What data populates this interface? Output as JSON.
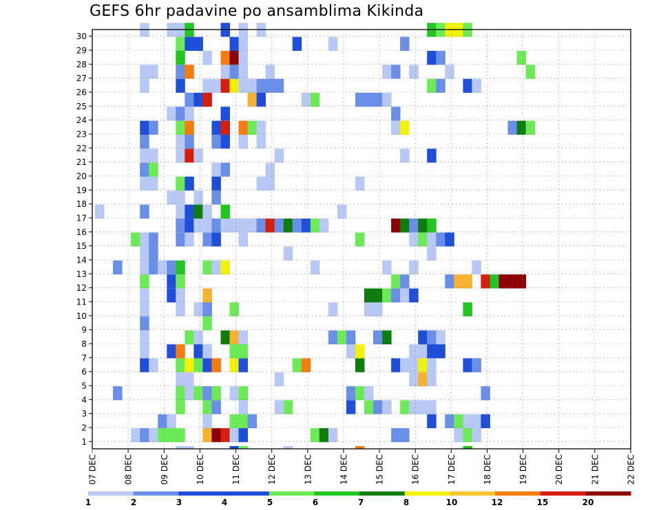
{
  "chart_data": {
    "type": "heatmap",
    "title": "GEFS 6hr padavine po ansamblima Kikinda",
    "xlabel": "",
    "ylabel": "",
    "y_tick_labels": [
      "1",
      "2",
      "3",
      "4",
      "5",
      "6",
      "7",
      "8",
      "9",
      "10",
      "11",
      "12",
      "13",
      "14",
      "15",
      "16",
      "17",
      "18",
      "19",
      "20",
      "21",
      "22",
      "23",
      "24",
      "25",
      "26",
      "27",
      "28",
      "29",
      "30"
    ],
    "x_tick_labels": [
      "07 DEC",
      "08 DEC",
      "09 DEC",
      "10 DEC",
      "11 DEC",
      "12 DEC",
      "13 DEC",
      "14 DEC",
      "15 DEC",
      "16 DEC",
      "17 DEC",
      "18 DEC",
      "19 DEC",
      "20 DEC",
      "21 DEC",
      "22 DEC"
    ],
    "color_levels": [
      "1",
      "2",
      "3",
      "4",
      "5",
      "6",
      "7",
      "8",
      "10",
      "12",
      "15",
      "20"
    ],
    "colorbar_colors": [
      "#b7c9f4",
      "#6a8fe8",
      "#1f4fd9",
      "#1f4fd9",
      "#6cea58",
      "#23c521",
      "#0e7d0e",
      "#f2f209",
      "#f8c533",
      "#f57d10",
      "#d61e0c",
      "#8b0000"
    ],
    "cells": [
      [
        "1",
        4,
        1
      ],
      [
        "1",
        5,
        2
      ],
      [
        "1",
        6,
        1
      ],
      [
        "1",
        7,
        5
      ],
      [
        "1",
        8,
        5
      ],
      [
        "1",
        9,
        5
      ],
      [
        "1",
        12,
        9
      ],
      [
        "1",
        13,
        12
      ],
      [
        "1",
        14,
        11
      ],
      [
        "1",
        15,
        1
      ],
      [
        "1",
        16,
        3
      ],
      [
        "1",
        24,
        5
      ],
      [
        "1",
        25,
        7
      ],
      [
        "1",
        26,
        1
      ],
      [
        "1",
        33,
        2
      ],
      [
        "1",
        34,
        2
      ],
      [
        "1",
        40,
        1
      ],
      [
        "1",
        41,
        5
      ],
      [
        "1",
        42,
        1
      ],
      [
        "2",
        7,
        2
      ],
      [
        "2",
        8,
        1
      ],
      [
        "2",
        12,
        1
      ],
      [
        "2",
        15,
        5
      ],
      [
        "2",
        16,
        5
      ],
      [
        "2",
        17,
        2
      ],
      [
        "2",
        37,
        3
      ],
      [
        "2",
        39,
        2
      ],
      [
        "2",
        40,
        5
      ],
      [
        "2",
        41,
        1
      ],
      [
        "2",
        42,
        1
      ],
      [
        "2",
        43,
        3
      ],
      [
        "3",
        9,
        5
      ],
      [
        "3",
        12,
        5
      ],
      [
        "3",
        13,
        2
      ],
      [
        "3",
        16,
        1
      ],
      [
        "3",
        21,
        5
      ],
      [
        "3",
        20,
        1
      ],
      [
        "3",
        28,
        3
      ],
      [
        "3",
        30,
        5
      ],
      [
        "3",
        31,
        2
      ],
      [
        "3",
        32,
        1
      ],
      [
        "3",
        34,
        5
      ],
      [
        "3",
        35,
        1
      ],
      [
        "3",
        36,
        1
      ],
      [
        "3",
        37,
        1
      ],
      [
        "4",
        2,
        2
      ],
      [
        "4",
        9,
        5
      ],
      [
        "4",
        10,
        1
      ],
      [
        "4",
        11,
        5
      ],
      [
        "4",
        12,
        2
      ],
      [
        "4",
        13,
        5
      ],
      [
        "4",
        15,
        1
      ],
      [
        "4",
        16,
        5
      ],
      [
        "4",
        28,
        2
      ],
      [
        "4",
        29,
        5
      ],
      [
        "4",
        30,
        1
      ],
      [
        "4",
        43,
        2
      ],
      [
        "5",
        9,
        1
      ],
      [
        "5",
        10,
        1
      ],
      [
        "5",
        20,
        1
      ],
      [
        "5",
        35,
        1
      ],
      [
        "5",
        36,
        9
      ],
      [
        "5",
        37,
        1
      ],
      [
        "6",
        5,
        3
      ],
      [
        "6",
        6,
        1
      ],
      [
        "6",
        9,
        5
      ],
      [
        "6",
        10,
        8
      ],
      [
        "6",
        11,
        5
      ],
      [
        "6",
        12,
        3
      ],
      [
        "6",
        13,
        10
      ],
      [
        "6",
        15,
        8
      ],
      [
        "6",
        16,
        3
      ],
      [
        "6",
        22,
        5
      ],
      [
        "6",
        23,
        10
      ],
      [
        "6",
        29,
        7
      ],
      [
        "6",
        33,
        3
      ],
      [
        "6",
        34,
        1
      ],
      [
        "6",
        35,
        1
      ],
      [
        "6",
        36,
        8
      ],
      [
        "6",
        37,
        1
      ],
      [
        "6",
        41,
        3
      ],
      [
        "6",
        42,
        2
      ],
      [
        "7",
        5,
        1
      ],
      [
        "7",
        8,
        3
      ],
      [
        "7",
        9,
        10
      ],
      [
        "7",
        11,
        3
      ],
      [
        "7",
        12,
        1
      ],
      [
        "7",
        15,
        5
      ],
      [
        "7",
        16,
        5
      ],
      [
        "7",
        28,
        1
      ],
      [
        "7",
        29,
        8
      ],
      [
        "7",
        35,
        1
      ],
      [
        "7",
        36,
        1
      ],
      [
        "7",
        37,
        3
      ],
      [
        "7",
        38,
        3
      ],
      [
        "8",
        5,
        1
      ],
      [
        "8",
        10,
        5
      ],
      [
        "8",
        11,
        1
      ],
      [
        "8",
        14,
        7
      ],
      [
        "8",
        15,
        9
      ],
      [
        "8",
        16,
        1
      ],
      [
        "8",
        26,
        2
      ],
      [
        "8",
        27,
        5
      ],
      [
        "8",
        28,
        2
      ],
      [
        "8",
        31,
        2
      ],
      [
        "8",
        32,
        7
      ],
      [
        "8",
        36,
        3
      ],
      [
        "8",
        37,
        2
      ],
      [
        "8",
        38,
        1
      ],
      [
        "9",
        5,
        2
      ],
      [
        "9",
        12,
        5
      ],
      [
        "10",
        5,
        1
      ],
      [
        "10",
        9,
        1
      ],
      [
        "10",
        11,
        1
      ],
      [
        "10",
        12,
        2
      ],
      [
        "10",
        15,
        5
      ],
      [
        "10",
        26,
        1
      ],
      [
        "10",
        30,
        1
      ],
      [
        "10",
        31,
        1
      ],
      [
        "10",
        41,
        6
      ],
      [
        "11",
        5,
        1
      ],
      [
        "11",
        8,
        3
      ],
      [
        "11",
        9,
        1
      ],
      [
        "11",
        12,
        9
      ],
      [
        "11",
        30,
        7
      ],
      [
        "11",
        31,
        7
      ],
      [
        "11",
        32,
        5
      ],
      [
        "11",
        33,
        2
      ],
      [
        "11",
        34,
        1
      ],
      [
        "11",
        35,
        3
      ],
      [
        "12",
        5,
        5
      ],
      [
        "12",
        8,
        3
      ],
      [
        "12",
        9,
        5
      ],
      [
        "12",
        33,
        5
      ],
      [
        "12",
        34,
        2
      ],
      [
        "12",
        39,
        2
      ],
      [
        "12",
        40,
        9
      ],
      [
        "12",
        41,
        9
      ],
      [
        "12",
        43,
        11
      ],
      [
        "12",
        44,
        6
      ],
      [
        "12",
        45,
        12
      ],
      [
        "12",
        46,
        12
      ],
      [
        "12",
        47,
        12
      ],
      [
        "13",
        2,
        2
      ],
      [
        "13",
        5,
        1
      ],
      [
        "13",
        6,
        2
      ],
      [
        "13",
        7,
        1
      ],
      [
        "13",
        8,
        2
      ],
      [
        "13",
        9,
        6
      ],
      [
        "13",
        12,
        5
      ],
      [
        "13",
        13,
        1
      ],
      [
        "13",
        14,
        8
      ],
      [
        "13",
        24,
        1
      ],
      [
        "13",
        32,
        1
      ],
      [
        "13",
        35,
        1
      ],
      [
        "13",
        42,
        1
      ],
      [
        "14",
        5,
        1
      ],
      [
        "14",
        6,
        2
      ],
      [
        "14",
        21,
        1
      ],
      [
        "14",
        37,
        1
      ],
      [
        "15",
        4,
        5
      ],
      [
        "15",
        5,
        1
      ],
      [
        "15",
        6,
        2
      ],
      [
        "15",
        9,
        2
      ],
      [
        "15",
        10,
        1
      ],
      [
        "15",
        12,
        2
      ],
      [
        "15",
        13,
        3
      ],
      [
        "15",
        16,
        1
      ],
      [
        "15",
        29,
        5
      ],
      [
        "15",
        35,
        1
      ],
      [
        "15",
        36,
        5
      ],
      [
        "15",
        37,
        1
      ],
      [
        "15",
        38,
        2
      ],
      [
        "15",
        39,
        3
      ],
      [
        "16",
        9,
        2
      ],
      [
        "16",
        10,
        3
      ],
      [
        "16",
        11,
        1
      ],
      [
        "16",
        12,
        1
      ],
      [
        "16",
        13,
        2
      ],
      [
        "16",
        14,
        1
      ],
      [
        "16",
        15,
        1
      ],
      [
        "16",
        16,
        1
      ],
      [
        "16",
        17,
        1
      ],
      [
        "16",
        18,
        2
      ],
      [
        "16",
        19,
        11
      ],
      [
        "16",
        20,
        2
      ],
      [
        "16",
        21,
        7
      ],
      [
        "16",
        22,
        2
      ],
      [
        "16",
        23,
        3
      ],
      [
        "16",
        24,
        5
      ],
      [
        "16",
        25,
        1
      ],
      [
        "16",
        33,
        12
      ],
      [
        "16",
        34,
        7
      ],
      [
        "16",
        35,
        2
      ],
      [
        "16",
        36,
        7
      ],
      [
        "16",
        37,
        6
      ],
      [
        "17",
        0,
        1
      ],
      [
        "17",
        5,
        2
      ],
      [
        "17",
        9,
        1
      ],
      [
        "17",
        10,
        3
      ],
      [
        "17",
        11,
        7
      ],
      [
        "17",
        12,
        1
      ],
      [
        "17",
        14,
        6
      ],
      [
        "17",
        27,
        1
      ],
      [
        "18",
        8,
        1
      ],
      [
        "18",
        9,
        1
      ],
      [
        "18",
        11,
        1
      ],
      [
        "18",
        13,
        2
      ],
      [
        "19",
        5,
        1
      ],
      [
        "19",
        6,
        1
      ],
      [
        "19",
        9,
        5
      ],
      [
        "19",
        10,
        3
      ],
      [
        "19",
        13,
        3
      ],
      [
        "19",
        18,
        1
      ],
      [
        "19",
        19,
        1
      ],
      [
        "19",
        29,
        1
      ],
      [
        "20",
        5,
        2
      ],
      [
        "20",
        6,
        5
      ],
      [
        "20",
        13,
        1
      ],
      [
        "20",
        14,
        2
      ],
      [
        "20",
        19,
        1
      ],
      [
        "21",
        5,
        1
      ],
      [
        "21",
        6,
        1
      ],
      [
        "21",
        9,
        1
      ],
      [
        "21",
        10,
        11
      ],
      [
        "21",
        11,
        1
      ],
      [
        "21",
        20,
        1
      ],
      [
        "21",
        34,
        1
      ],
      [
        "21",
        37,
        3
      ],
      [
        "22",
        5,
        2
      ],
      [
        "22",
        9,
        1
      ],
      [
        "22",
        10,
        2
      ],
      [
        "22",
        13,
        2
      ],
      [
        "22",
        14,
        3
      ],
      [
        "22",
        16,
        1
      ],
      [
        "22",
        18,
        1
      ],
      [
        "23",
        5,
        3
      ],
      [
        "23",
        6,
        2
      ],
      [
        "23",
        9,
        5
      ],
      [
        "23",
        10,
        10
      ],
      [
        "23",
        13,
        3
      ],
      [
        "23",
        14,
        11
      ],
      [
        "23",
        16,
        10
      ],
      [
        "23",
        17,
        5
      ],
      [
        "23",
        18,
        1
      ],
      [
        "23",
        33,
        1
      ],
      [
        "23",
        34,
        8
      ],
      [
        "23",
        46,
        2
      ],
      [
        "23",
        47,
        7
      ],
      [
        "23",
        48,
        5
      ],
      [
        "24",
        8,
        1
      ],
      [
        "24",
        9,
        2
      ],
      [
        "24",
        10,
        1
      ],
      [
        "24",
        14,
        3
      ],
      [
        "24",
        33,
        2
      ],
      [
        "25",
        10,
        2
      ],
      [
        "25",
        11,
        3
      ],
      [
        "25",
        12,
        11
      ],
      [
        "25",
        17,
        9
      ],
      [
        "25",
        18,
        3
      ],
      [
        "25",
        23,
        1
      ],
      [
        "25",
        24,
        5
      ],
      [
        "25",
        29,
        2
      ],
      [
        "25",
        30,
        2
      ],
      [
        "25",
        31,
        2
      ],
      [
        "25",
        32,
        1
      ],
      [
        "26",
        5,
        1
      ],
      [
        "26",
        9,
        3
      ],
      [
        "26",
        12,
        1
      ],
      [
        "26",
        13,
        1
      ],
      [
        "26",
        14,
        11
      ],
      [
        "26",
        15,
        8
      ],
      [
        "26",
        16,
        1
      ],
      [
        "26",
        17,
        1
      ],
      [
        "26",
        18,
        2
      ],
      [
        "26",
        19,
        2
      ],
      [
        "26",
        20,
        2
      ],
      [
        "26",
        37,
        5
      ],
      [
        "26",
        38,
        2
      ],
      [
        "26",
        41,
        3
      ],
      [
        "26",
        42,
        1
      ],
      [
        "27",
        5,
        1
      ],
      [
        "27",
        6,
        1
      ],
      [
        "27",
        9,
        2
      ],
      [
        "27",
        10,
        10
      ],
      [
        "27",
        14,
        1
      ],
      [
        "27",
        15,
        2
      ],
      [
        "27",
        16,
        1
      ],
      [
        "27",
        19,
        1
      ],
      [
        "27",
        32,
        1
      ],
      [
        "27",
        33,
        2
      ],
      [
        "27",
        35,
        1
      ],
      [
        "27",
        39,
        1
      ],
      [
        "27",
        48,
        5
      ],
      [
        "28",
        9,
        6
      ],
      [
        "28",
        12,
        1
      ],
      [
        "28",
        14,
        10
      ],
      [
        "28",
        15,
        12
      ],
      [
        "28",
        16,
        1
      ],
      [
        "28",
        37,
        3
      ],
      [
        "28",
        38,
        2
      ],
      [
        "28",
        47,
        5
      ],
      [
        "29",
        9,
        5
      ],
      [
        "29",
        10,
        3
      ],
      [
        "29",
        11,
        3
      ],
      [
        "29",
        15,
        3
      ],
      [
        "29",
        16,
        1
      ],
      [
        "29",
        22,
        3
      ],
      [
        "29",
        26,
        1
      ],
      [
        "29",
        34,
        2
      ],
      [
        "30",
        5,
        1
      ],
      [
        "30",
        8,
        1
      ],
      [
        "30",
        9,
        1
      ],
      [
        "30",
        10,
        6
      ],
      [
        "30",
        14,
        3
      ],
      [
        "30",
        16,
        1
      ],
      [
        "30",
        18,
        1
      ],
      [
        "30",
        37,
        6
      ],
      [
        "30",
        38,
        5
      ],
      [
        "30",
        39,
        8
      ],
      [
        "30",
        40,
        8
      ],
      [
        "30",
        41,
        5
      ],
      [
        "0",
        9,
        1
      ],
      [
        "0",
        10,
        1
      ],
      [
        "0",
        15,
        3
      ],
      [
        "0",
        16,
        5
      ],
      [
        "0",
        21,
        1
      ],
      [
        "0",
        29,
        10
      ],
      [
        "0",
        41,
        6
      ]
    ]
  }
}
